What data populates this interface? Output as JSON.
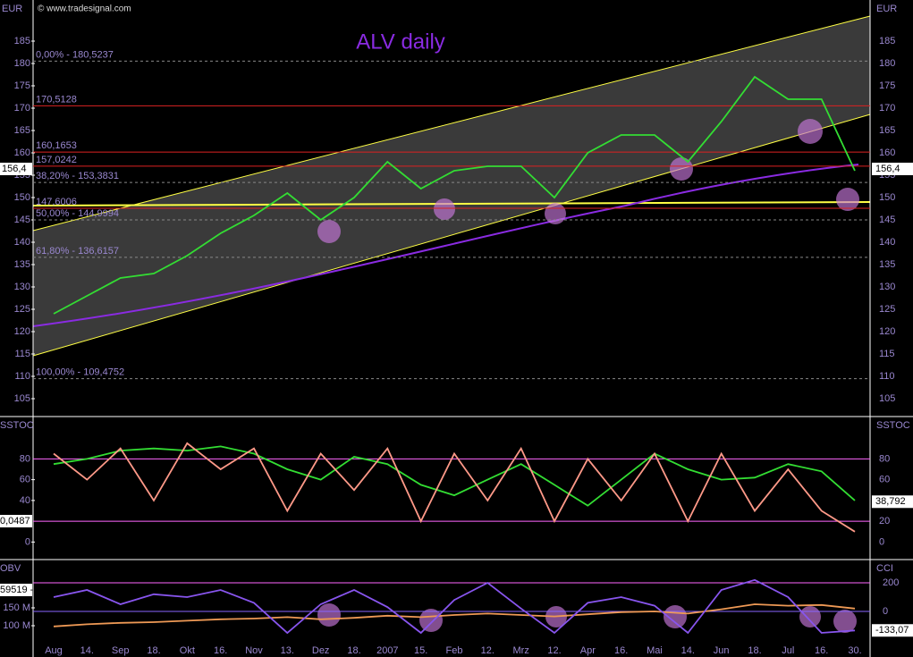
{
  "header": {
    "copyright": "© www.tradesignal.com",
    "currency_left": "EUR",
    "currency_right": "EUR"
  },
  "chart_data": [
    {
      "type": "line",
      "title": "ALV daily",
      "categories": [
        "Aug",
        "14.",
        "Sep",
        "18.",
        "Okt",
        "16.",
        "Nov",
        "13.",
        "Dez",
        "18.",
        "2007",
        "15.",
        "Feb",
        "12.",
        "Mrz",
        "12.",
        "Apr",
        "16.",
        "Mai",
        "14.",
        "Jun",
        "18.",
        "Jul",
        "16.",
        "30."
      ],
      "series": [
        {
          "color": "#33dd33",
          "values": [
            124,
            128,
            132,
            133,
            137,
            142,
            146,
            151,
            145,
            150,
            158,
            152,
            156,
            157,
            157,
            150,
            160,
            164,
            164,
            158,
            167,
            177,
            172,
            172,
            156
          ]
        }
      ],
      "ylim": [
        101,
        194.2
      ],
      "yticks": [
        105,
        110,
        115,
        120,
        125,
        130,
        135,
        140,
        145,
        150,
        155,
        160,
        165,
        170,
        175,
        180,
        185
      ],
      "levels": [
        {
          "value": 180.5237,
          "label": "0,00% - 180,5237",
          "color": "#888888"
        },
        {
          "value": 170.5128,
          "label": "170,5128",
          "color": "#dd2222"
        },
        {
          "value": 160.1653,
          "label": "160,1653",
          "color": "#dd2222"
        },
        {
          "value": 157.0242,
          "label": "157,0242",
          "color": "#dd2222"
        },
        {
          "value": 153.3831,
          "label": "38,20% - 153,3831",
          "color": "#888888"
        },
        {
          "value": 147.6006,
          "label": "147,6006",
          "color": "#dd2222"
        },
        {
          "value": 144.9994,
          "label": "50,00% - 144,9994",
          "color": "#888888"
        },
        {
          "value": 136.6157,
          "label": "61,80% - 136,6157",
          "color": "#888888"
        },
        {
          "value": 109.4752,
          "label": "100,00% - 109,4752",
          "color": "#888888"
        }
      ],
      "last_value": {
        "value": 156.4,
        "label": "156,4"
      }
    },
    {
      "type": "line",
      "title": "SSTOC",
      "right_title": "SSTOC",
      "categories": [
        "Aug",
        "14.",
        "Sep",
        "18.",
        "Okt",
        "16.",
        "Nov",
        "13.",
        "Dez",
        "18.",
        "2007",
        "15.",
        "Feb",
        "12.",
        "Mrz",
        "12.",
        "Apr",
        "16.",
        "Mai",
        "14.",
        "Jun",
        "18.",
        "Jul",
        "16.",
        "30."
      ],
      "series": [
        {
          "color": "#33dd33",
          "values": [
            75,
            80,
            88,
            90,
            88,
            92,
            85,
            70,
            60,
            82,
            75,
            55,
            45,
            60,
            75,
            55,
            35,
            60,
            85,
            70,
            60,
            62,
            75,
            68,
            40
          ]
        },
        {
          "color": "#ff9988",
          "values": [
            85,
            60,
            90,
            40,
            95,
            70,
            90,
            30,
            85,
            50,
            90,
            20,
            85,
            40,
            90,
            20,
            80,
            40,
            85,
            20,
            85,
            30,
            70,
            30,
            10
          ]
        }
      ],
      "ylim": [
        -16,
        119
      ],
      "yticks": [
        0,
        20,
        40,
        60,
        80
      ],
      "left_readout": "0,0487",
      "last_value": {
        "value": 38.792,
        "label": "38,792"
      }
    },
    {
      "type": "line",
      "title": "OBV",
      "right_title": "CCI",
      "categories": [
        "Aug",
        "14.",
        "Sep",
        "18.",
        "Okt",
        "16.",
        "Nov",
        "13.",
        "Dez",
        "18.",
        "2007",
        "15.",
        "Feb",
        "12.",
        "Mrz",
        "12.",
        "Apr",
        "16.",
        "Mai",
        "14.",
        "Jun",
        "18.",
        "Jul",
        "16.",
        "30."
      ],
      "series": [
        {
          "color": "#ee9955",
          "values": [
            98000000,
            104000000,
            108000000,
            110000000,
            114000000,
            118000000,
            120000000,
            124000000,
            118000000,
            122000000,
            128000000,
            124000000,
            130000000,
            134000000,
            130000000,
            126000000,
            132000000,
            138000000,
            140000000,
            134000000,
            146000000,
            160000000,
            156000000,
            158000000,
            148000000
          ]
        },
        {
          "color": "#8855ee",
          "axis": "y2",
          "values": [
            100,
            150,
            50,
            120,
            100,
            150,
            60,
            -150,
            50,
            150,
            30,
            -150,
            80,
            200,
            20,
            -150,
            60,
            100,
            40,
            -150,
            150,
            220,
            100,
            -150,
            -133.07
          ]
        }
      ],
      "ylim": [
        12500000,
        280000000
      ],
      "yticks": [
        {
          "value": 100000000,
          "label": "100 M"
        },
        {
          "value": 150000000,
          "label": "150 M"
        }
      ],
      "y2lim": [
        -319,
        350
      ],
      "y2ticks": [
        0,
        200
      ],
      "left_readout": "59519 -",
      "last_value": {
        "value": -133.07,
        "label": "-133,07"
      }
    }
  ]
}
